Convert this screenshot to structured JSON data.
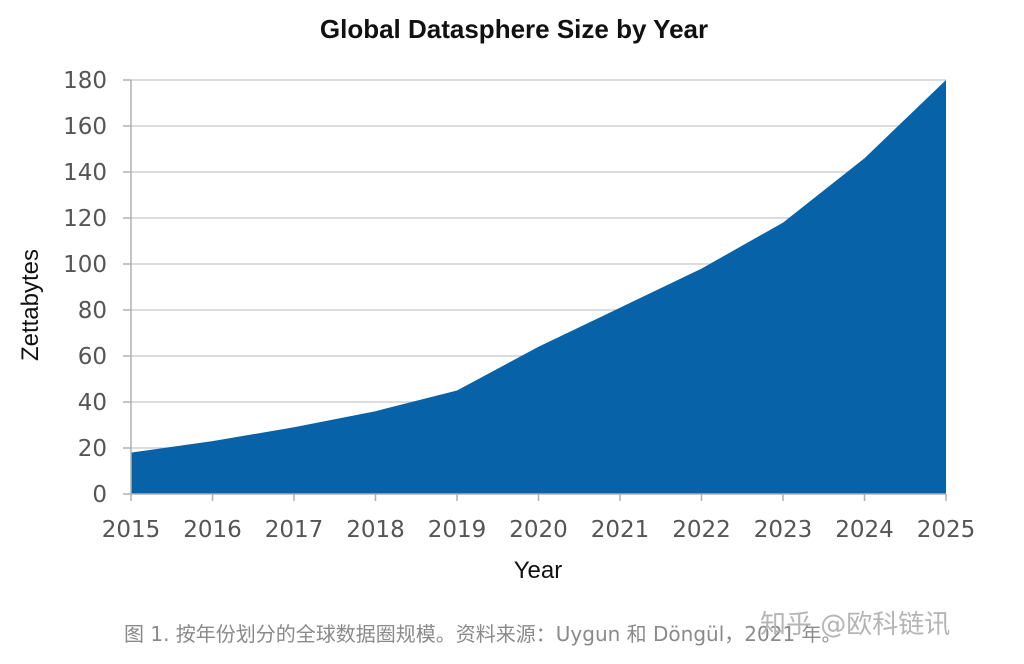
{
  "chart_data": {
    "type": "area",
    "title": "Global Datasphere Size by Year",
    "xlabel": "Year",
    "ylabel": "Zettabytes",
    "x": [
      "2015",
      "2016",
      "2017",
      "2018",
      "2019",
      "2020",
      "2021",
      "2022",
      "2023",
      "2024",
      "2025"
    ],
    "series": [
      {
        "values": [
          18,
          23,
          29,
          36,
          45,
          64,
          81,
          98,
          118,
          146,
          180
        ]
      }
    ],
    "ylim": [
      0,
      180
    ],
    "yticks": [
      0,
      20,
      40,
      60,
      80,
      100,
      120,
      140,
      160,
      180
    ],
    "grid": true,
    "legend": "none",
    "colors": {
      "fill": "#0862a8",
      "grid": "#d0d0d0",
      "axis": "#b0b0b0"
    }
  },
  "caption": "图 1. 按年份划分的全球数据圈规模。资料来源：Uygun 和 Döngül，2021 年。",
  "watermark": "知乎 @欧科链讯"
}
